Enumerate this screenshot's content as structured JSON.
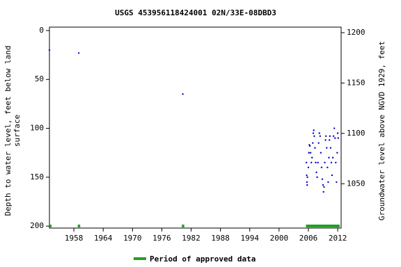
{
  "chart_data": {
    "type": "scatter",
    "title": "USGS 453956118424001 02N/33E-08DBD3",
    "ylabel": [
      "Depth to water level, feet below land",
      "surface"
    ],
    "y2label": "Groundwater level above NGVD 1929, feet",
    "xlim": [
      1953,
      2012.7
    ],
    "xticks": [
      1958,
      1964,
      1970,
      1976,
      1982,
      1988,
      1994,
      2000,
      2006,
      2012
    ],
    "ylim": [
      -3.5,
      202
    ],
    "yticks": [
      0,
      50,
      100,
      150,
      200
    ],
    "y2lim": [
      1006,
      1205.5
    ],
    "y2ticks": [
      1050,
      1100,
      1150,
      1200
    ],
    "inverted_y": true,
    "series": [
      {
        "color": "#0000cc",
        "x": [
          1953.0,
          1959.0,
          1980.3,
          2005.6,
          2005.65,
          2005.7,
          2005.75,
          2005.8,
          2006.0,
          2006.1,
          2006.2,
          2006.3,
          2006.45,
          2006.6,
          2006.75,
          2006.9,
          2007.0,
          2007.1,
          2007.2,
          2007.35,
          2007.5,
          2007.65,
          2007.8,
          2007.95,
          2008.1,
          2008.25,
          2008.4,
          2008.55,
          2008.7,
          2008.85,
          2009.0,
          2009.1,
          2009.2,
          2009.35,
          2009.5,
          2009.6,
          2009.75,
          2009.9,
          2010.05,
          2010.2,
          2010.3,
          2010.4,
          2010.55,
          2010.7,
          2010.85,
          2011.0,
          2011.15,
          2011.3,
          2011.45,
          2011.6,
          2011.75,
          2011.9,
          2012.0,
          2012.1
        ],
        "values": [
          20,
          23,
          65,
          135,
          148,
          155,
          158,
          150,
          140,
          125,
          117,
          118,
          125,
          135,
          130,
          115,
          105,
          102,
          108,
          120,
          135,
          145,
          150,
          135,
          115,
          105,
          108,
          125,
          140,
          152,
          158,
          165,
          160,
          135,
          112,
          108,
          120,
          140,
          155,
          130,
          112,
          108,
          120,
          135,
          148,
          130,
          108,
          100,
          110,
          135,
          155,
          125,
          105,
          110
        ]
      }
    ],
    "periods": {
      "name": "Period of approved data",
      "color": "#22a022",
      "ranges": [
        [
          1953.0,
          1953.3
        ],
        [
          1958.8,
          1959.3
        ],
        [
          1980.1,
          1980.6
        ],
        [
          2005.5,
          2012.4
        ]
      ]
    }
  }
}
